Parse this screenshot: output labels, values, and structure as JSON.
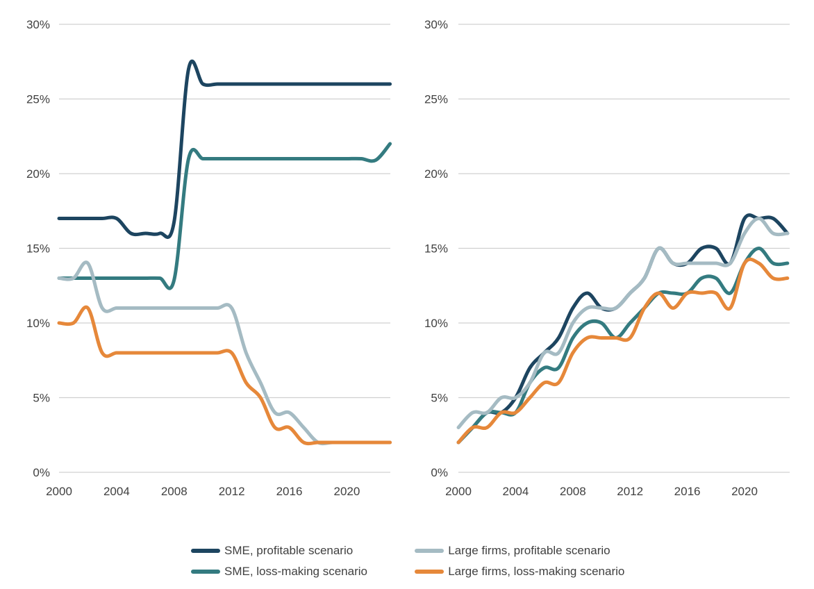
{
  "chart_data": [
    {
      "type": "line",
      "title": "",
      "xlabel": "",
      "ylabel": "",
      "x": [
        2000,
        2001,
        2002,
        2003,
        2004,
        2005,
        2006,
        2007,
        2008,
        2009,
        2010,
        2011,
        2012,
        2013,
        2014,
        2015,
        2016,
        2017,
        2018,
        2019,
        2020,
        2021,
        2022,
        2023
      ],
      "xticks": [
        "2000",
        "2004",
        "2008",
        "2012",
        "2016",
        "2020"
      ],
      "yticks": [
        "0%",
        "5%",
        "10%",
        "15%",
        "20%",
        "25%",
        "30%"
      ],
      "ylim": [
        0,
        30
      ],
      "grid": true,
      "series": [
        {
          "name": "SME, profitable scenario",
          "color": "#1d4560",
          "values": [
            17,
            17,
            17,
            17,
            17,
            16,
            16,
            16,
            16.8,
            27,
            26,
            26,
            26,
            26,
            26,
            26,
            26,
            26,
            26,
            26,
            26,
            26,
            26,
            26
          ]
        },
        {
          "name": "SME, loss-making scenario",
          "color": "#347b80",
          "values": [
            13,
            13,
            13,
            13,
            13,
            13,
            13,
            13,
            12.9,
            21,
            21,
            21,
            21,
            21,
            21,
            21,
            21,
            21,
            21,
            21,
            21,
            21,
            20.9,
            22
          ]
        },
        {
          "name": "Large firms, profitable scenario",
          "color": "#a5bbc3",
          "values": [
            13,
            13,
            14,
            11,
            11,
            11,
            11,
            11,
            11,
            11,
            11,
            11,
            11,
            8,
            6,
            4,
            4,
            3,
            2,
            2,
            2,
            2,
            2,
            2
          ]
        },
        {
          "name": "Large firms, loss-making scenario",
          "color": "#e6883a",
          "values": [
            10,
            10,
            11,
            8,
            8,
            8,
            8,
            8,
            8,
            8,
            8,
            8,
            8,
            6,
            5,
            3,
            3,
            2,
            2,
            2,
            2,
            2,
            2,
            2
          ]
        }
      ]
    },
    {
      "type": "line",
      "title": "",
      "xlabel": "",
      "ylabel": "",
      "x": [
        2000,
        2001,
        2002,
        2003,
        2004,
        2005,
        2006,
        2007,
        2008,
        2009,
        2010,
        2011,
        2012,
        2013,
        2014,
        2015,
        2016,
        2017,
        2018,
        2019,
        2020,
        2021,
        2022,
        2023
      ],
      "xticks": [
        "2000",
        "2004",
        "2008",
        "2012",
        "2016",
        "2020"
      ],
      "yticks": [
        "0%",
        "5%",
        "10%",
        "15%",
        "20%",
        "25%",
        "30%"
      ],
      "ylim": [
        0,
        30
      ],
      "grid": true,
      "series": [
        {
          "name": "SME, profitable scenario",
          "color": "#1d4560",
          "values": [
            2,
            3,
            4,
            4,
            5,
            7,
            8,
            9,
            11,
            12,
            11,
            11,
            12,
            13,
            15,
            14,
            14,
            15,
            15,
            14,
            17,
            17,
            17,
            16
          ]
        },
        {
          "name": "SME, loss-making scenario",
          "color": "#347b80",
          "values": [
            2,
            3,
            4,
            4,
            4,
            6,
            7,
            7,
            9,
            10,
            10,
            9,
            10,
            11,
            12,
            12,
            12,
            13,
            13,
            12,
            14,
            15,
            14,
            14
          ]
        },
        {
          "name": "Large firms, profitable scenario",
          "color": "#a5bbc3",
          "values": [
            3,
            4,
            4,
            5,
            5,
            6,
            8,
            8,
            10,
            11,
            11,
            11,
            12,
            13,
            15,
            14,
            14,
            14,
            14,
            14,
            16,
            17,
            16,
            16
          ]
        },
        {
          "name": "Large firms, loss-making scenario",
          "color": "#e6883a",
          "values": [
            2,
            3,
            3,
            4,
            4,
            5,
            6,
            6,
            8,
            9,
            9,
            9,
            9,
            11,
            12,
            11,
            12,
            12,
            12,
            11,
            14,
            14,
            13,
            13
          ]
        }
      ]
    }
  ],
  "legend": {
    "placement": "bottom",
    "items": [
      {
        "label": "SME, profitable scenario",
        "color": "#1d4560"
      },
      {
        "label": "Large firms, profitable scenario",
        "color": "#a5bbc3"
      },
      {
        "label": "SME, loss-making scenario",
        "color": "#347b80"
      },
      {
        "label": "Large firms, loss-making scenario",
        "color": "#e6883a"
      }
    ]
  }
}
